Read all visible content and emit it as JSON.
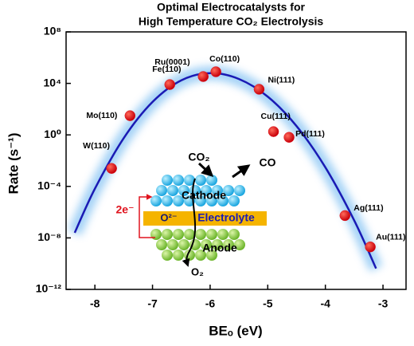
{
  "chart_data": {
    "type": "scatter",
    "title": [
      "Optimal Electrocatalysts for",
      "High Temperature CO₂ Electrolysis"
    ],
    "x_label": "BEₒ (eV)",
    "y_label": "Rate (s⁻¹)",
    "xlim": [
      -8.5,
      -2.6
    ],
    "xticks": [
      -8,
      -7,
      -6,
      -5,
      -4,
      -3
    ],
    "ylim": [
      1e-12,
      100000000
    ],
    "yticks": [
      {
        "value": 1e-12,
        "label": "10⁻¹²"
      },
      {
        "value": 1e-08,
        "label": "10⁻⁸"
      },
      {
        "value": 0.0001,
        "label": "10⁻⁴"
      },
      {
        "value": 1,
        "label": "10⁰"
      },
      {
        "value": 10000,
        "label": "10⁴"
      },
      {
        "value": 100000000,
        "label": "10⁸"
      }
    ],
    "y_log": true,
    "points": {
      "color": "#e0141e",
      "labels": [
        "W(110)",
        "Mo(110)",
        "Fe(110)",
        "Ru(0001)",
        "Co(110)",
        "Ni(111)",
        "Cu(111)",
        "Pd(111)",
        "Ag(111)",
        "Au(111)"
      ],
      "x": [
        -7.71,
        -7.39,
        -6.7,
        -6.12,
        -5.9,
        -5.15,
        -4.9,
        -4.63,
        -3.66,
        -3.22
      ],
      "values": [
        0.0025,
        31,
        8100,
        34000,
        80000,
        3500,
        1.8,
        0.65,
        5.4e-07,
        2e-09
      ]
    },
    "curve": {
      "color": "#1a1ab4",
      "x": [
        -8.35,
        -8,
        -7.5,
        -7,
        -6.5,
        -6,
        -5.5,
        -5,
        -4.5,
        -4,
        -3.5,
        -3.12
      ],
      "values": [
        2.5e-08,
        6.6e-05,
        0.56,
        363,
        17400,
        63000,
        21900,
        933,
        4.8,
        0.003,
        2.3e-07,
        4.2e-11
      ]
    },
    "inset": {
      "reactant": "CO₂",
      "product": "CO",
      "cathode": "Cathode",
      "ion": "O²⁻",
      "electrolyte": "Electrolyte",
      "anode": "Anode",
      "exhaust": "O₂",
      "electrons": "2e⁻"
    }
  }
}
